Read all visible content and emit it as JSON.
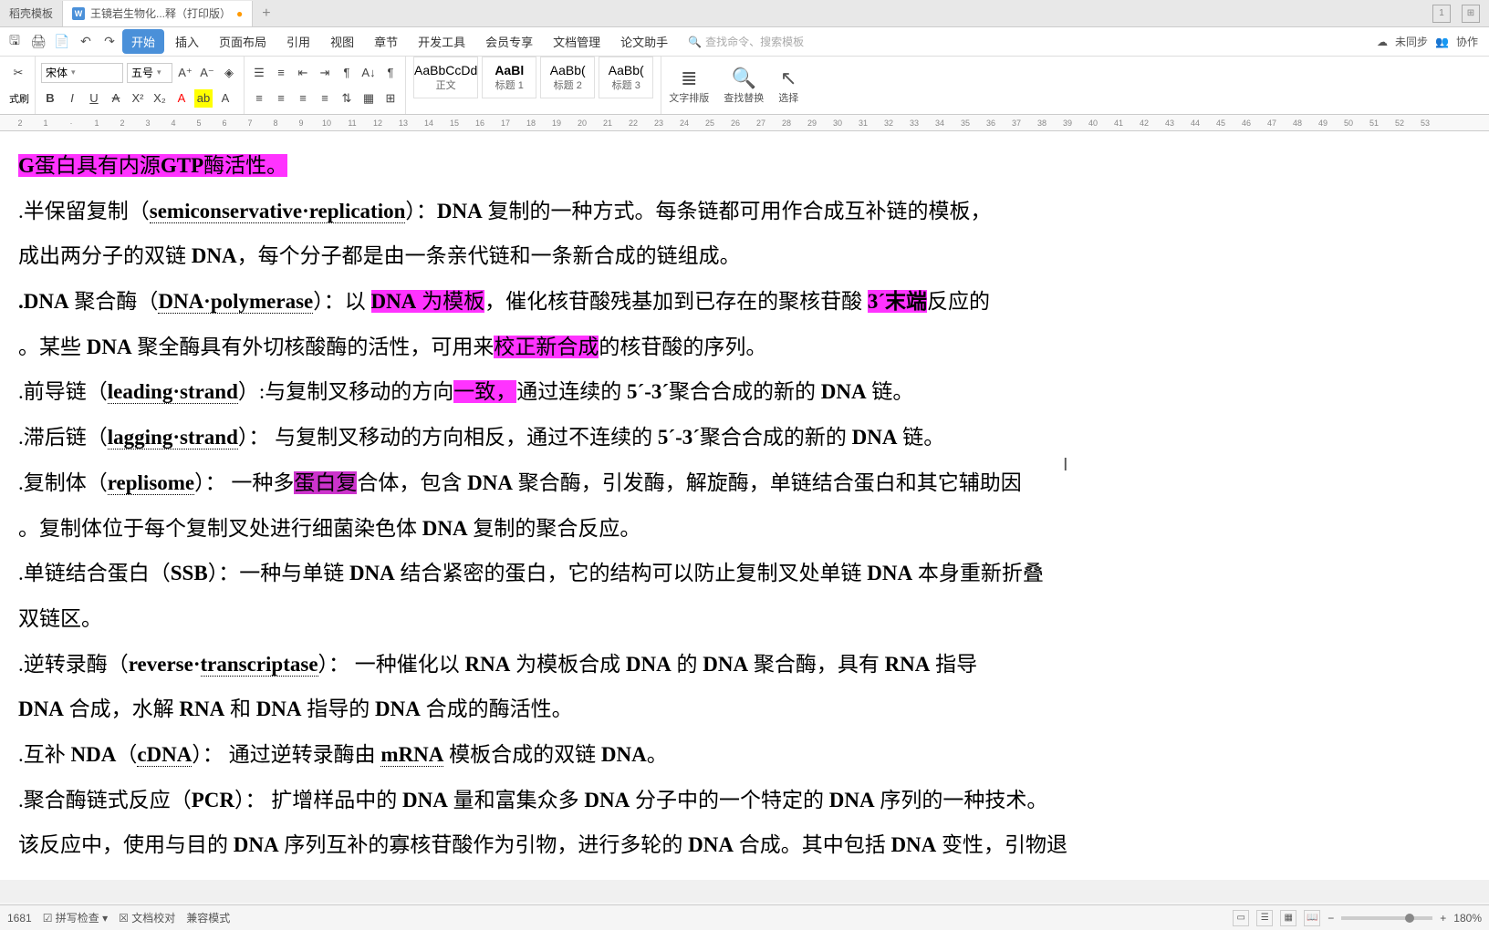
{
  "tabs": {
    "tab1": "稻壳模板",
    "tab2": "王镜岩生物化...释（打印版）",
    "add": "+"
  },
  "titleright": {
    "w1": "1",
    "w2": "⊞"
  },
  "menu": {
    "start": "开始",
    "items": [
      "插入",
      "页面布局",
      "引用",
      "视图",
      "章节",
      "开发工具",
      "会员专享",
      "文档管理",
      "论文助手"
    ],
    "search_placeholder": "查找命令、搜索模板",
    "sync": "未同步",
    "coop": "协作"
  },
  "ribbon": {
    "brush": "式刷",
    "font": "宋体",
    "size": "五号",
    "styles": {
      "s1p": "AaBbCcDd",
      "s1": "正文",
      "s2p": "AaBl",
      "s2": "标题 1",
      "s3p": "AaBb(",
      "s3": "标题 2",
      "s4p": "AaBb(",
      "s4": "标题 3"
    },
    "layout": "文字排版",
    "find": "查找替换",
    "select": "选择"
  },
  "ruler": [
    "2",
    "1",
    "·",
    "1",
    "2",
    "3",
    "4",
    "5",
    "6",
    "7",
    "8",
    "9",
    "10",
    "11",
    "12",
    "13",
    "14",
    "15",
    "16",
    "17",
    "18",
    "19",
    "20",
    "21",
    "22",
    "23",
    "24",
    "25",
    "26",
    "27",
    "28",
    "29",
    "30",
    "31",
    "32",
    "33",
    "34",
    "35",
    "36",
    "37",
    "38",
    "39",
    "40",
    "41",
    "42",
    "43",
    "44",
    "45",
    "46",
    "47",
    "48",
    "49",
    "50",
    "51",
    "52",
    "53"
  ],
  "doc": {
    "l0a": "G",
    "l0b": "蛋白具有内源",
    "l0c": "GTP",
    "l0d": "酶活性。",
    "l1a": ".半保留复制（",
    "l1b": "semiconservative·replication",
    "l1c": "）：",
    "l1d": "DNA",
    "l1e": " 复制的一种方式。每条链都可用作合成互补链的模板，",
    "l2a": "成出两分子的双链 ",
    "l2b": "DNA",
    "l2c": "，每个分子都是由一条亲代链和一条新合成的链组成。",
    "l3a": ".DNA",
    "l3b": " 聚合酶（",
    "l3c": "DNA·polymerase",
    "l3d": "）：以 ",
    "l3e": "DNA",
    "l3f": " 为模板",
    "l3g": "，催化核苷酸残基加到已存在的聚核苷酸 ",
    "l3h": "3´末端",
    "l3i": "反应的",
    "l4a": "。某些 ",
    "l4b": "DNA",
    "l4c": " 聚全酶具有外切核酸酶的活性，可用来",
    "l4d": "校正新合成",
    "l4e": "的核苷酸的序列。",
    "l5a": ".前导链（",
    "l5b": "leading·strand",
    "l5c": "）:与复制叉移动的方向",
    "l5d": "一致，",
    "l5e": "通过连续的 ",
    "l5f": "5´-3´",
    "l5g": "聚合合成的新的 ",
    "l5h": "DNA",
    "l5i": " 链。",
    "l6a": ".滞后链（",
    "l6b": "lagging·strand",
    "l6c": "）： 与复制叉移动的方向相反，通过不连续的 ",
    "l6d": "5´-3´",
    "l6e": "聚合合成的新的 ",
    "l6f": "DNA",
    "l6g": " 链。",
    "l7a": ".复制体（",
    "l7b": "replisome",
    "l7c": "）： 一种多",
    "l7d": "蛋白复",
    "l7e": "合体，包含 ",
    "l7f": "DNA",
    "l7g": " 聚合酶，引发酶，解旋酶，单链结合蛋白和其它辅助因",
    "l8a": "。复制体位于每个复制叉处进行细菌染色体 ",
    "l8b": "DNA",
    "l8c": " 复制的聚合反应。",
    "l9a": ".单链结合蛋白（",
    "l9b": "SSB",
    "l9c": "）：一种与单链 ",
    "l9d": "DNA",
    "l9e": " 结合紧密的蛋白，它的结构可以防止复制叉处单链 ",
    "l9f": "DNA",
    "l9g": " 本身重新折叠",
    "l10": "双链区。",
    "l11a": ".逆转录酶（",
    "l11b": "reverse·",
    "l11c": "transcriptase",
    "l11d": "）： 一种催化以 ",
    "l11e": "RNA",
    "l11f": " 为模板合成 ",
    "l11g": "DNA",
    "l11h": " 的 ",
    "l11i": "DNA",
    "l11j": " 聚合酶，具有 ",
    "l11k": "RNA",
    "l11l": " 指导",
    "l12a": "DNA",
    "l12b": " 合成，水解 ",
    "l12c": "RNA",
    "l12d": " 和 ",
    "l12e": "DNA",
    "l12f": " 指导的 ",
    "l12g": "DNA",
    "l12h": " 合成的酶活性。",
    "l13a": ".互补 ",
    "l13b": "NDA",
    "l13c": "（",
    "l13d": "cDNA",
    "l13e": "）： 通过逆转录酶由 ",
    "l13f": "mRNA",
    "l13g": " 模板合成的双链 ",
    "l13h": "DNA",
    "l13i": "。",
    "l14a": ".聚合酶链式反应（",
    "l14b": "PCR",
    "l14c": "）： 扩增样品中的 ",
    "l14d": "DNA",
    "l14e": " 量和富集众多 ",
    "l14f": "DNA",
    "l14g": " 分子中的一个特定的 ",
    "l14h": "DNA",
    "l14i": " 序列的一种技术。",
    "l15a": "该反应中，使用与目的 ",
    "l15b": "DNA",
    "l15c": " 序列互补的寡核苷酸作为引物，进行多轮的 ",
    "l15d": "DNA",
    "l15e": " 合成。其中包括 ",
    "l15f": "DNA",
    "l15g": " 变性，引物退"
  },
  "status": {
    "words": "1681",
    "spell": "拼写检查",
    "proof": "文档校对",
    "compat": "兼容模式",
    "zoom": "180%"
  }
}
